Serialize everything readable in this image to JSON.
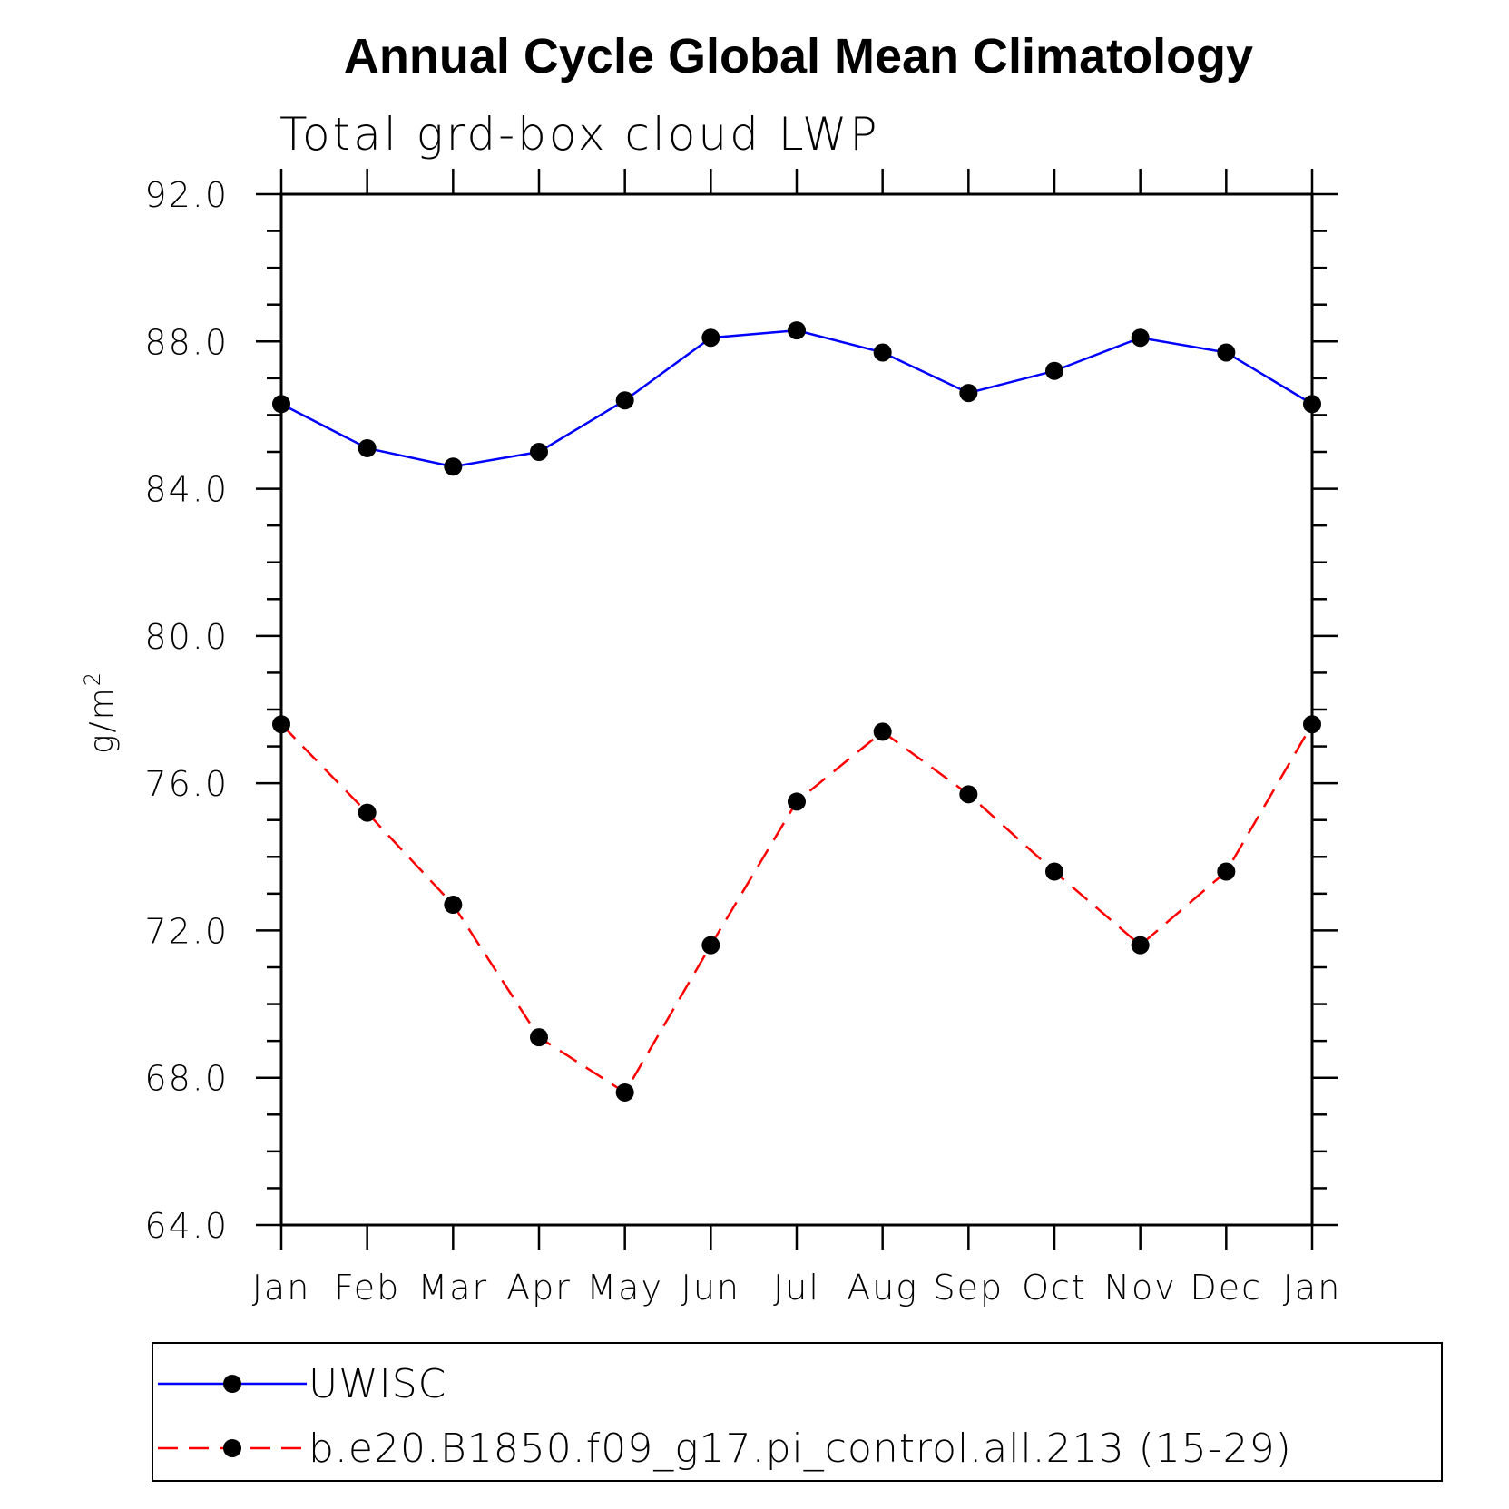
{
  "chart_data": {
    "type": "line",
    "title": "Annual Cycle Global Mean Climatology",
    "subtitle": "Total grd-box cloud LWP",
    "ylabel": "g/m",
    "ylabel_superscript": "2",
    "xlabel": "",
    "categories": [
      "Jan",
      "Feb",
      "Mar",
      "Apr",
      "May",
      "Jun",
      "Jul",
      "Aug",
      "Sep",
      "Oct",
      "Nov",
      "Dec",
      "Jan"
    ],
    "ylim": [
      64.0,
      92.0
    ],
    "yticks": [
      64.0,
      68.0,
      72.0,
      76.0,
      80.0,
      84.0,
      88.0,
      92.0
    ],
    "ytick_labels": [
      "64.0",
      "68.0",
      "72.0",
      "76.0",
      "80.0",
      "84.0",
      "88.0",
      "92.0"
    ],
    "series": [
      {
        "name": "UWISC",
        "color": "#0000ff",
        "dashed": false,
        "values": [
          86.3,
          85.1,
          84.6,
          85.0,
          86.4,
          88.1,
          88.3,
          87.7,
          86.6,
          87.2,
          88.1,
          87.7,
          86.3
        ]
      },
      {
        "name": "b.e20.B1850.f09_g17.pi_control.all.213 (15-29)",
        "color": "#ff0000",
        "dashed": true,
        "values": [
          77.6,
          75.2,
          72.7,
          69.1,
          67.6,
          71.6,
          75.5,
          77.4,
          75.7,
          73.6,
          71.6,
          73.6,
          77.6
        ]
      }
    ],
    "marker_color": "#000000",
    "legend_placement": "bottom"
  }
}
